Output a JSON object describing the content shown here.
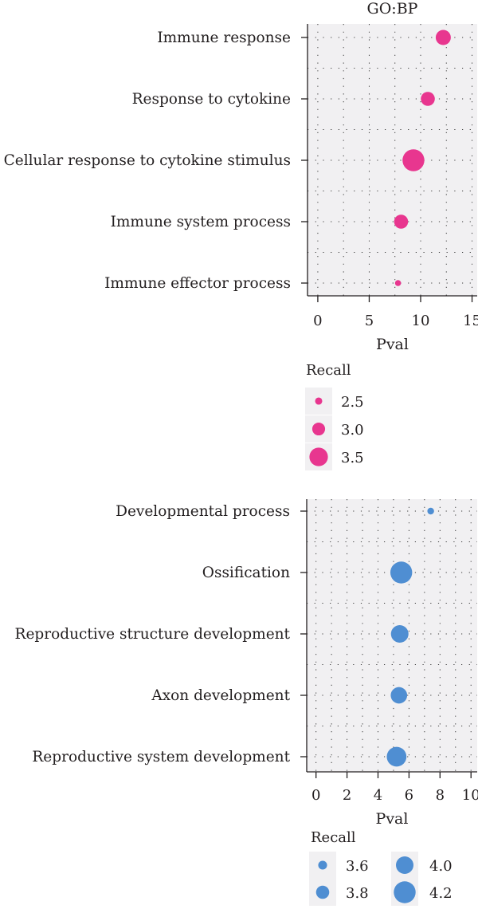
{
  "colors": {
    "panel_bg": "#f1f0f2",
    "grid_dot": "#3a3a3a",
    "axis": "#231f20",
    "series_pink": "#e8368f",
    "series_blue": "#4f8ed2"
  },
  "chart_data": [
    {
      "type": "scatter",
      "title": "GO:BP",
      "xlabel": "Pval",
      "ylabel": "",
      "xlim": [
        -1,
        15.5
      ],
      "xticks": [
        "0",
        "5",
        "10",
        "15"
      ],
      "grid": true,
      "categories": [
        "Immune response",
        "Response to cytokine",
        "Cellular response to cytokine stimulus",
        "Immune system process",
        "Immune effector process"
      ],
      "x": [
        12.2,
        10.7,
        9.3,
        8.1,
        7.8
      ],
      "size": [
        3.2,
        3.1,
        3.8,
        3.1,
        2.4
      ],
      "color": "#e8368f",
      "legend": {
        "title": "Recall",
        "placement": "bottom",
        "entries": [
          {
            "label": "2.5",
            "value": 2.5
          },
          {
            "label": "3.0",
            "value": 3.0
          },
          {
            "label": "3.5",
            "value": 3.5
          }
        ]
      }
    },
    {
      "type": "scatter",
      "title": "",
      "xlabel": "Pval",
      "ylabel": "",
      "xlim": [
        -0.6,
        10.4
      ],
      "xticks": [
        "0",
        "2",
        "4",
        "6",
        "8",
        "10"
      ],
      "grid": true,
      "categories": [
        "Developmental process",
        "Ossification",
        "Reproductive structure development",
        "Axon development",
        "Reproductive system development"
      ],
      "x": [
        7.4,
        5.5,
        5.4,
        5.35,
        5.2
      ],
      "size": [
        3.5,
        4.2,
        4.0,
        3.95,
        4.1
      ],
      "color": "#4f8ed2",
      "legend": {
        "title": "Recall",
        "placement": "bottom",
        "entries": [
          {
            "label": "3.6",
            "value": 3.6
          },
          {
            "label": "3.8",
            "value": 3.8
          },
          {
            "label": "4.0",
            "value": 4.0
          },
          {
            "label": "4.2",
            "value": 4.2
          }
        ]
      }
    }
  ]
}
